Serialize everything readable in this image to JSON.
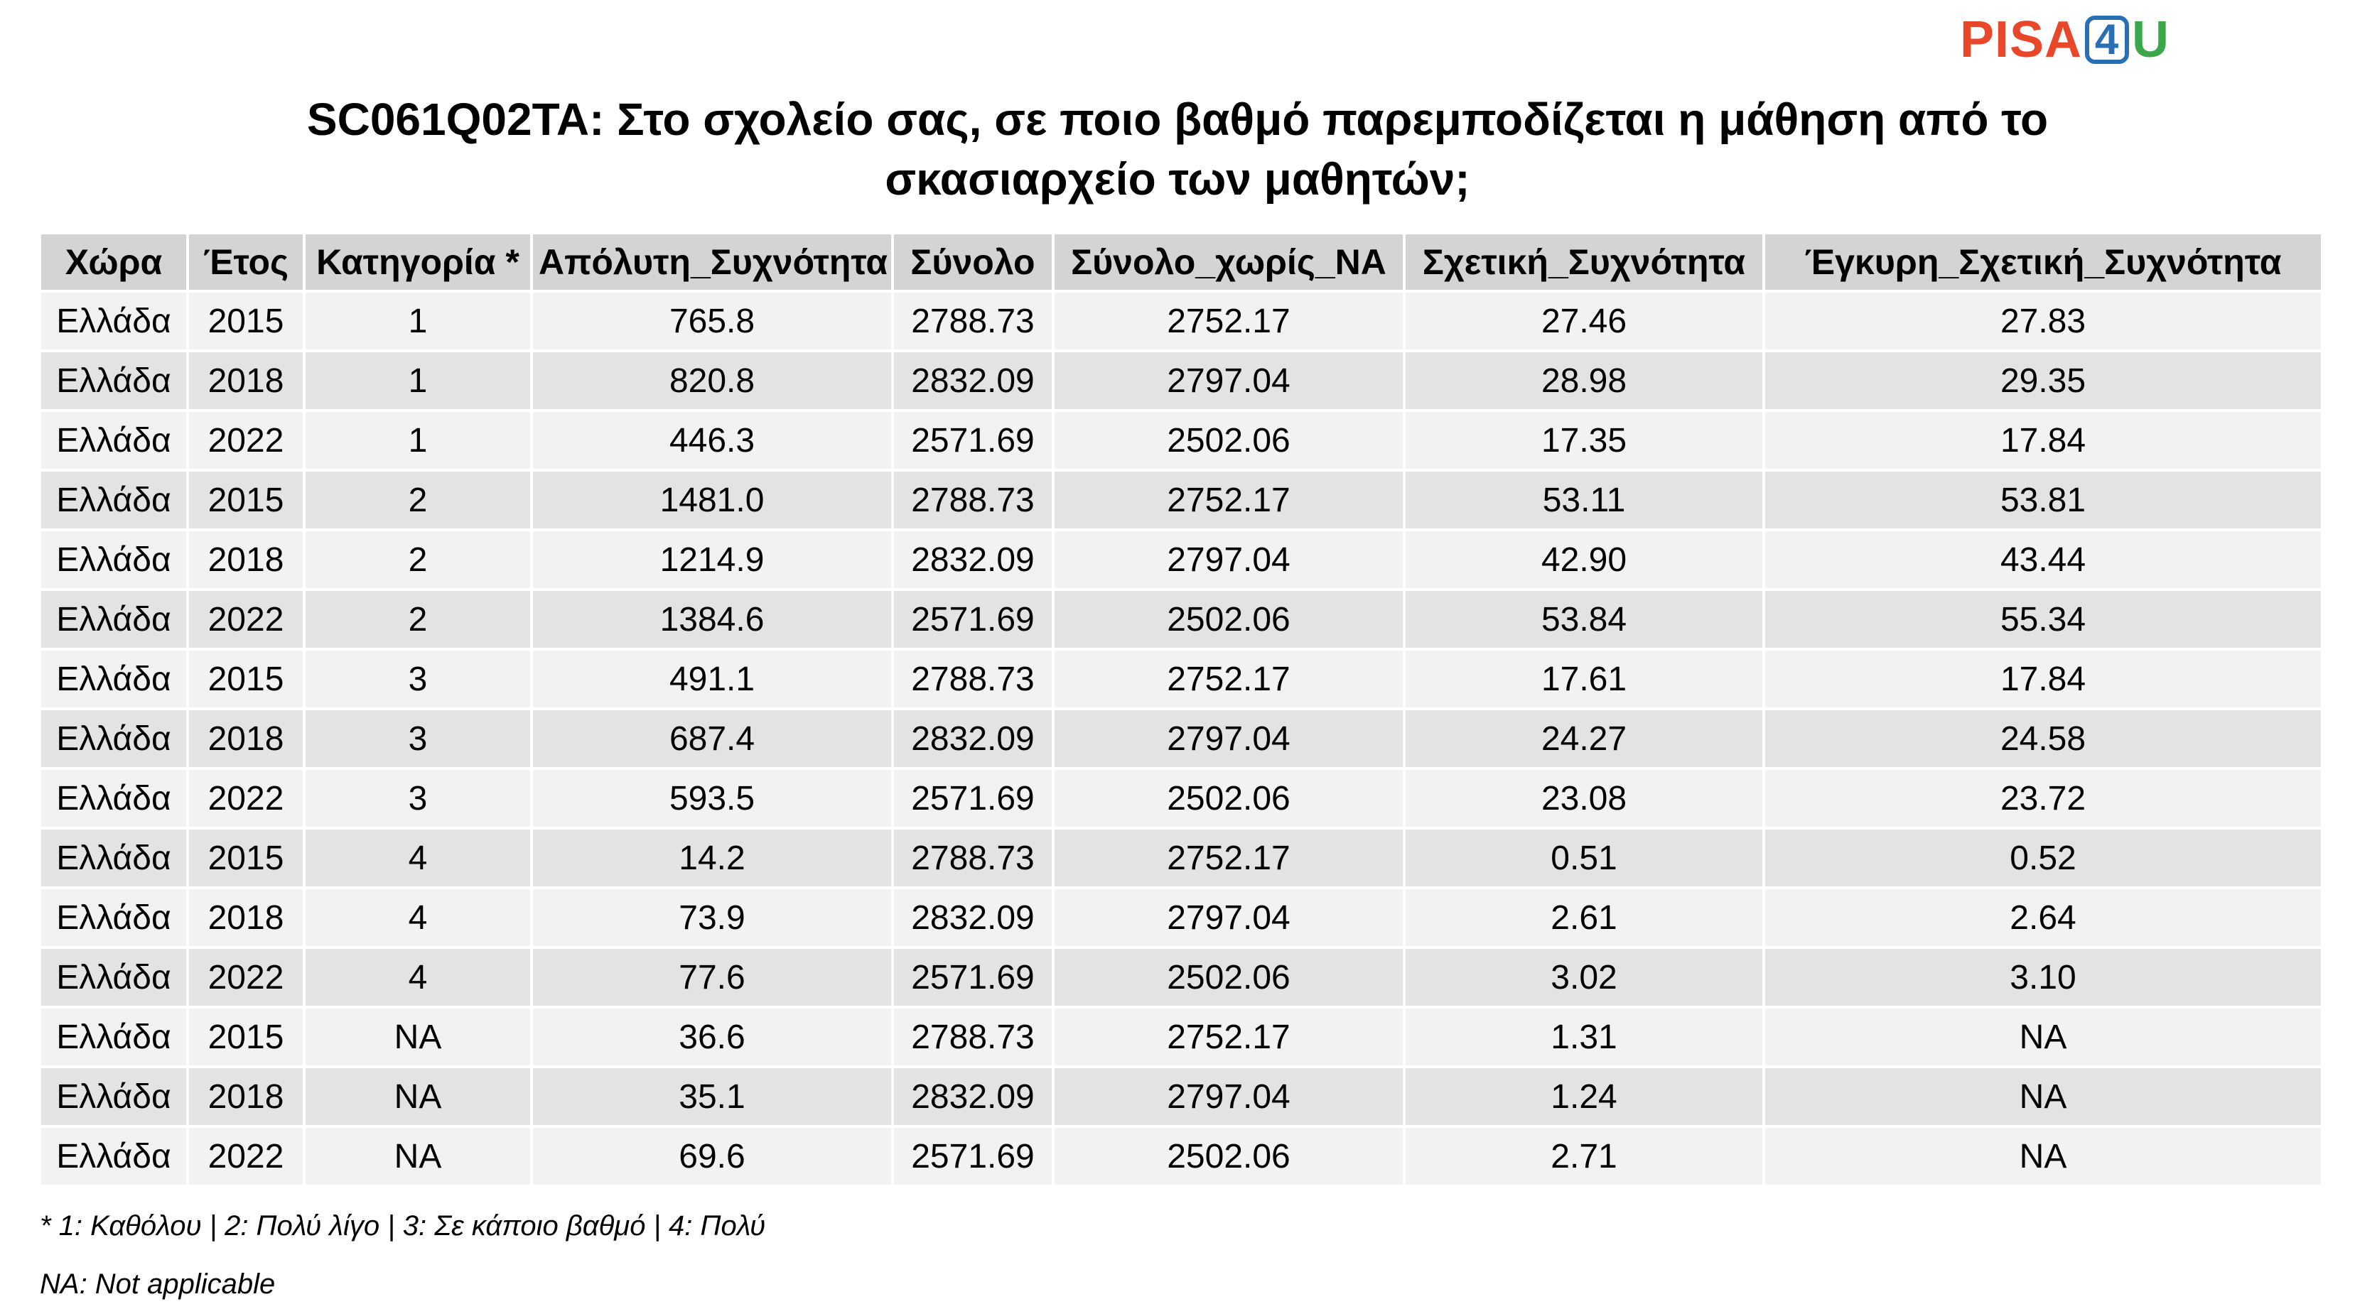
{
  "logo": {
    "part1": "PISA",
    "part2": "4",
    "part3": "U"
  },
  "title": {
    "line1": "SC061Q02TA: Στο σχολείο σας, σε ποιο βαθμό παρεμποδίζεται η μάθηση από το",
    "line2": "σκασιαρχείο των μαθητών;"
  },
  "table": {
    "headers": [
      "Χώρα",
      "Έτος",
      "Κατηγορία *",
      "Απόλυτη_Συχνότητα",
      "Σύνολο",
      "Σύνολο_χωρίς_NA",
      "Σχετική_Συχνότητα",
      "Έγκυρη_Σχετική_Συχνότητα"
    ],
    "rows": [
      [
        "Ελλάδα",
        "2015",
        "1",
        "765.8",
        "2788.73",
        "2752.17",
        "27.46",
        "27.83"
      ],
      [
        "Ελλάδα",
        "2018",
        "1",
        "820.8",
        "2832.09",
        "2797.04",
        "28.98",
        "29.35"
      ],
      [
        "Ελλάδα",
        "2022",
        "1",
        "446.3",
        "2571.69",
        "2502.06",
        "17.35",
        "17.84"
      ],
      [
        "Ελλάδα",
        "2015",
        "2",
        "1481.0",
        "2788.73",
        "2752.17",
        "53.11",
        "53.81"
      ],
      [
        "Ελλάδα",
        "2018",
        "2",
        "1214.9",
        "2832.09",
        "2797.04",
        "42.90",
        "43.44"
      ],
      [
        "Ελλάδα",
        "2022",
        "2",
        "1384.6",
        "2571.69",
        "2502.06",
        "53.84",
        "55.34"
      ],
      [
        "Ελλάδα",
        "2015",
        "3",
        "491.1",
        "2788.73",
        "2752.17",
        "17.61",
        "17.84"
      ],
      [
        "Ελλάδα",
        "2018",
        "3",
        "687.4",
        "2832.09",
        "2797.04",
        "24.27",
        "24.58"
      ],
      [
        "Ελλάδα",
        "2022",
        "3",
        "593.5",
        "2571.69",
        "2502.06",
        "23.08",
        "23.72"
      ],
      [
        "Ελλάδα",
        "2015",
        "4",
        "14.2",
        "2788.73",
        "2752.17",
        "0.51",
        "0.52"
      ],
      [
        "Ελλάδα",
        "2018",
        "4",
        "73.9",
        "2832.09",
        "2797.04",
        "2.61",
        "2.64"
      ],
      [
        "Ελλάδα",
        "2022",
        "4",
        "77.6",
        "2571.69",
        "2502.06",
        "3.02",
        "3.10"
      ],
      [
        "Ελλάδα",
        "2015",
        "NA",
        "36.6",
        "2788.73",
        "2752.17",
        "1.31",
        "NA"
      ],
      [
        "Ελλάδα",
        "2018",
        "NA",
        "35.1",
        "2832.09",
        "2797.04",
        "1.24",
        "NA"
      ],
      [
        "Ελλάδα",
        "2022",
        "NA",
        "69.6",
        "2571.69",
        "2502.06",
        "2.71",
        "NA"
      ]
    ]
  },
  "notes": {
    "categories": "* 1: Καθόλου | 2: Πολύ λίγο | 3: Σε κάποιο βαθμό | 4: Πολύ",
    "na": "NA: Not applicable"
  },
  "colors": {
    "logo_pisa": "#e8472a",
    "logo_four": "#2a6fb3",
    "logo_u": "#3aa84a",
    "header_bg": "#d4d4d4",
    "row_light": "#f2f2f2",
    "row_dark": "#e3e3e3"
  }
}
